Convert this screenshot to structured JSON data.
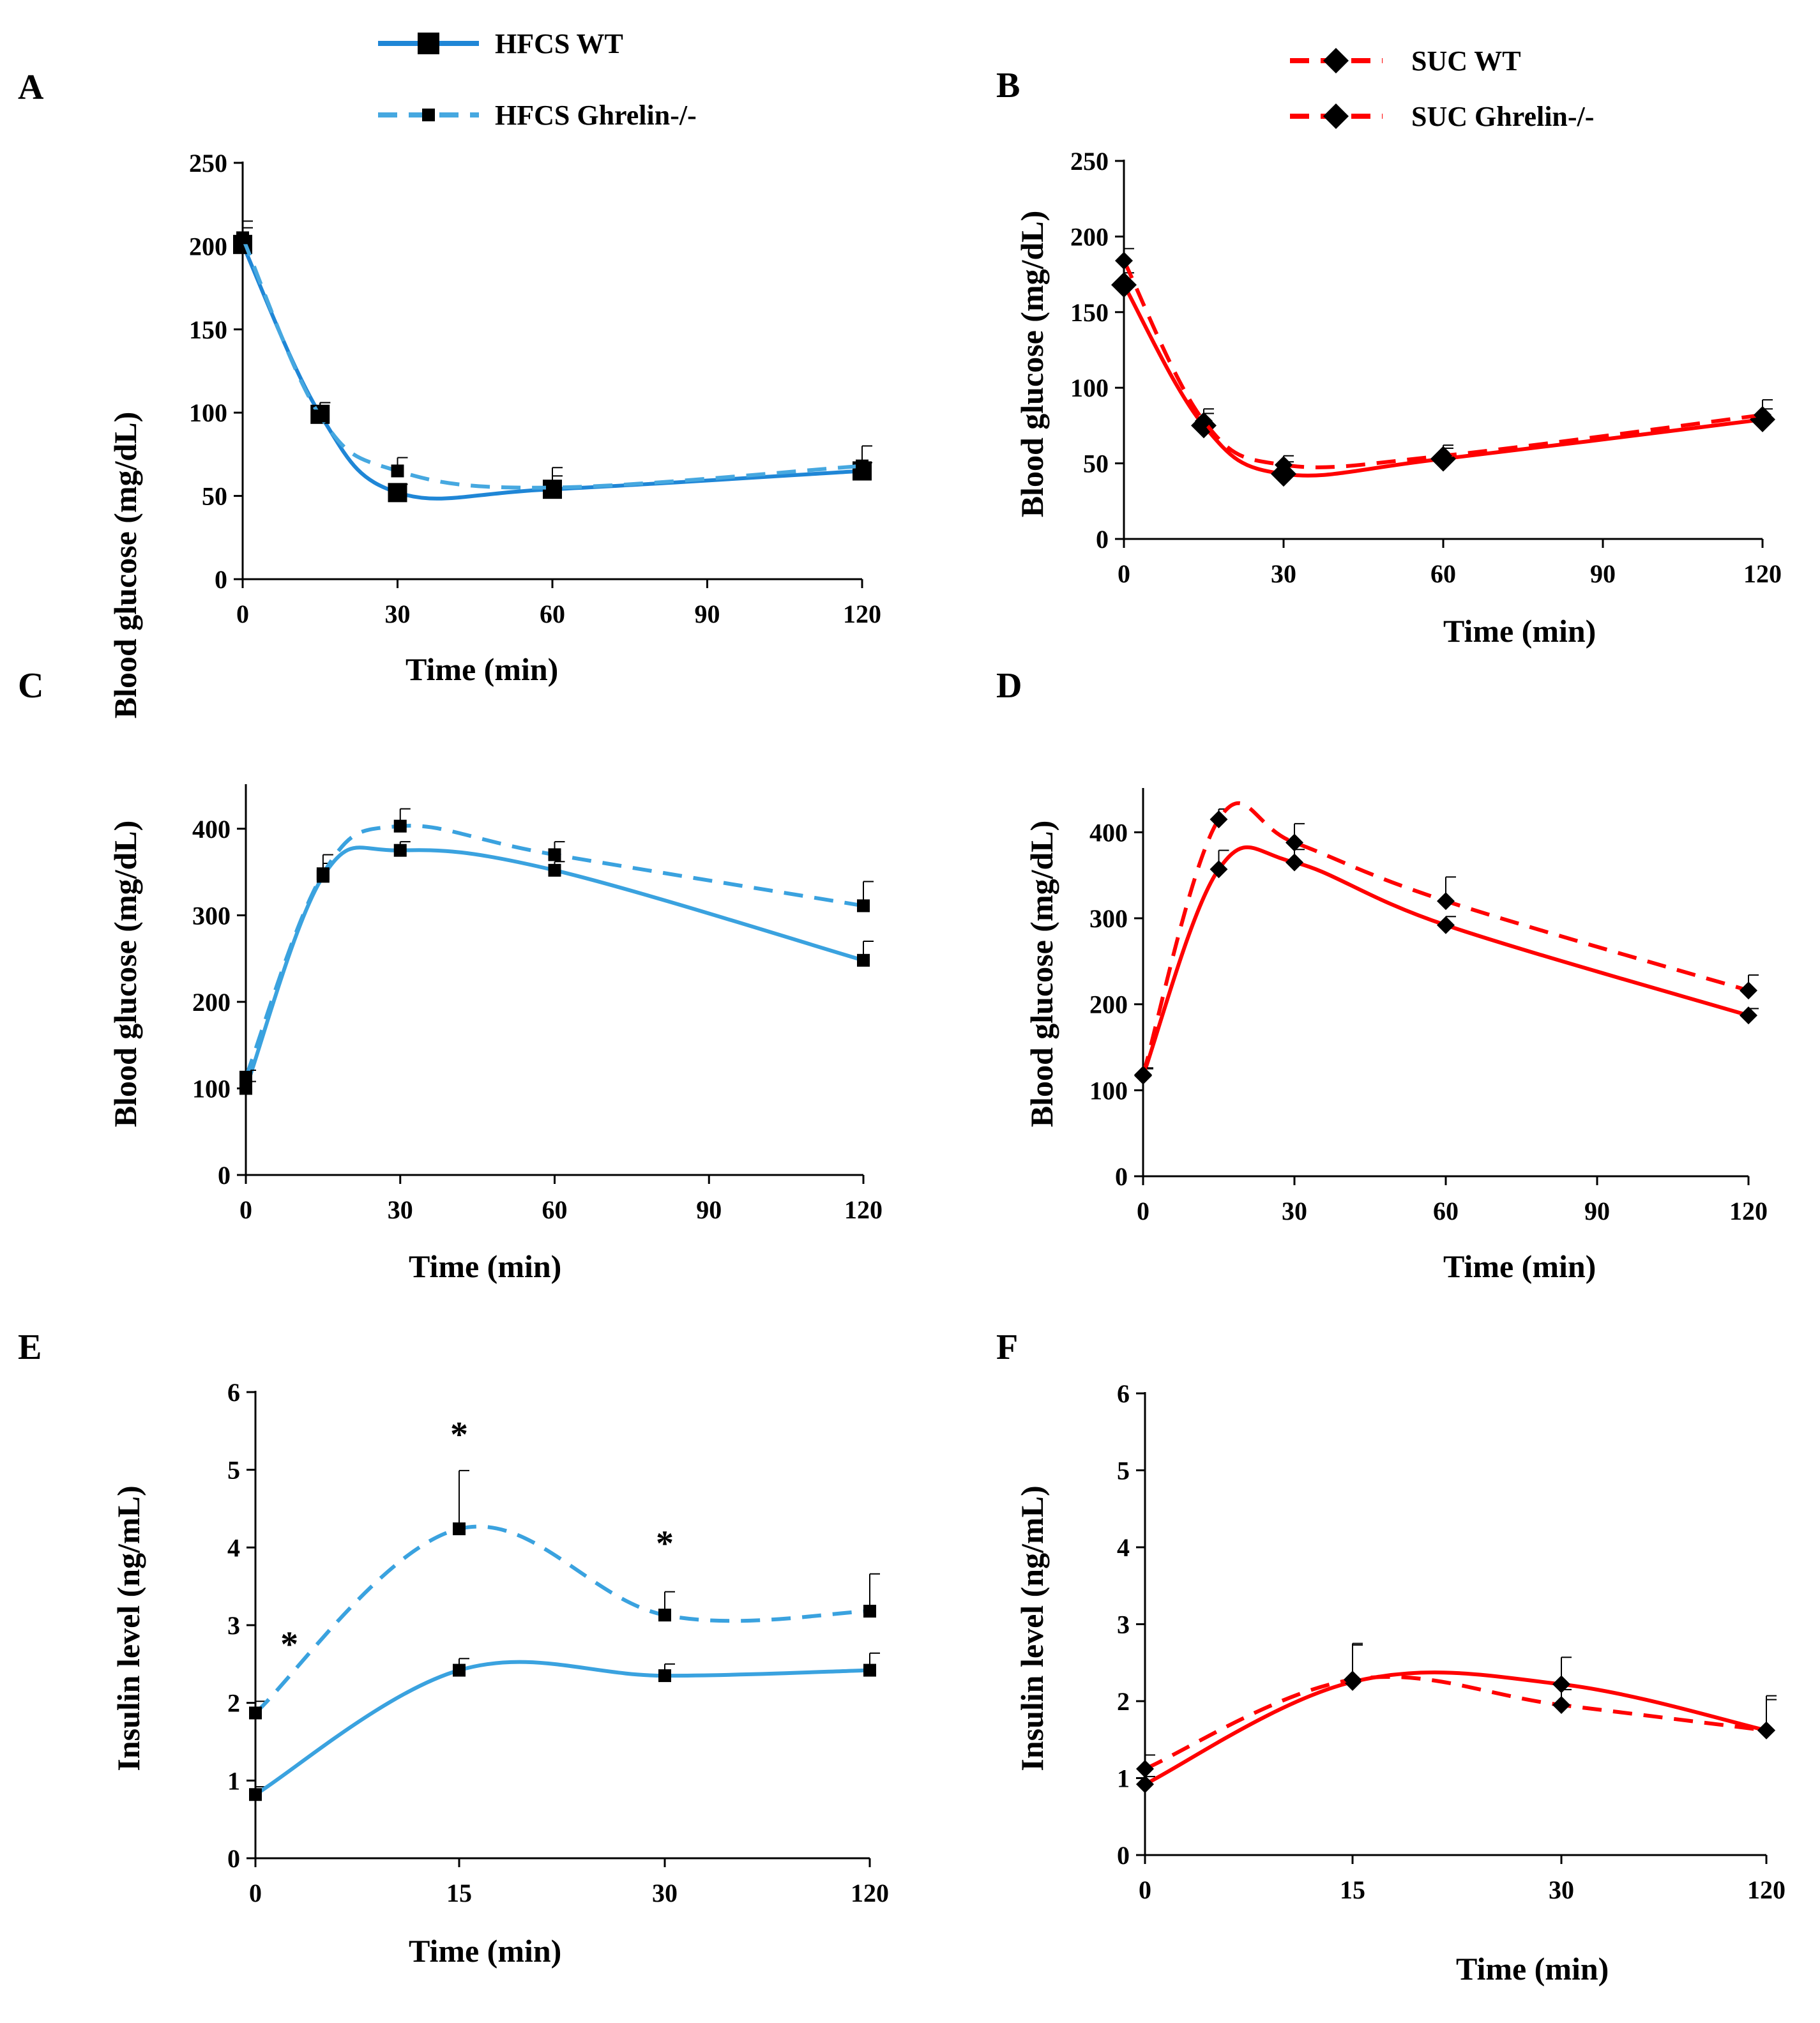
{
  "colors": {
    "hfcs_wt": "#1f86d6",
    "hfcs_ko": "#46a8e0",
    "hfcs_cd": "#3aa2df",
    "suc": "#ff0000",
    "marker": "#000000"
  },
  "legends": {
    "hfcs": [
      {
        "label": "HFCS WT",
        "style": "solid",
        "marker": "square-large"
      },
      {
        "label": "HFCS Ghrelin-/-",
        "style": "dashed",
        "marker": "square-small"
      }
    ],
    "suc": [
      {
        "label": "SUC WT",
        "style": "dashed",
        "marker": "diamond"
      },
      {
        "label": "SUC Ghrelin-/-",
        "style": "dashed",
        "marker": "diamond"
      }
    ]
  },
  "chart_data": [
    {
      "id": "A",
      "letter": "A",
      "type": "line",
      "xlabel": "Time (min)",
      "ylabel": "Blood glucose (mg/dL)",
      "xticks": [
        0,
        30,
        60,
        90,
        120
      ],
      "xtick_labels": [
        "0",
        "30",
        "60",
        "90",
        "120"
      ],
      "yticks": [
        0,
        50,
        100,
        150,
        200,
        250
      ],
      "ylim": [
        0,
        250
      ],
      "series": [
        {
          "name": "HFCS WT",
          "style": "solid",
          "color_key": "hfcs_wt",
          "marker": "square-large",
          "x": [
            0,
            15,
            30,
            60,
            120
          ],
          "values": [
            201,
            99,
            52,
            54,
            65
          ],
          "errors": [
            10,
            7,
            5,
            8,
            5
          ]
        },
        {
          "name": "HFCS Ghrelin-/-",
          "style": "dashed",
          "color_key": "hfcs_ko",
          "marker": "square-small",
          "x": [
            0,
            15,
            30,
            60,
            120
          ],
          "values": [
            205,
            98,
            65,
            55,
            68
          ],
          "errors": [
            10,
            8,
            8,
            12,
            12
          ]
        }
      ],
      "annotations": []
    },
    {
      "id": "B",
      "letter": "B",
      "type": "line",
      "xlabel": "Time (min)",
      "ylabel": "Blood glucose (mg/dL)",
      "xticks": [
        0,
        30,
        60,
        90,
        120
      ],
      "xtick_labels": [
        "0",
        "30",
        "60",
        "90",
        "120"
      ],
      "yticks": [
        0,
        50,
        100,
        150,
        200,
        250
      ],
      "ylim": [
        0,
        250
      ],
      "series": [
        {
          "name": "SUC WT",
          "style": "solid",
          "color_key": "suc",
          "marker": "diamond-large",
          "x": [
            0,
            15,
            30,
            60,
            120
          ],
          "values": [
            168,
            75,
            43,
            53,
            79
          ],
          "errors": [
            8,
            8,
            8,
            7,
            7
          ]
        },
        {
          "name": "SUC Ghrelin-/-",
          "style": "dashed",
          "color_key": "suc",
          "marker": "diamond",
          "x": [
            0,
            15,
            30,
            60,
            120
          ],
          "values": [
            184,
            78,
            49,
            55,
            82
          ],
          "errors": [
            8,
            8,
            6,
            7,
            10
          ]
        }
      ],
      "annotations": []
    },
    {
      "id": "C",
      "letter": "C",
      "type": "line",
      "xlabel": "Time (min)",
      "ylabel": "Blood glucose (mg/dL)",
      "xticks": [
        0,
        30,
        60,
        90,
        120
      ],
      "xtick_labels": [
        "0",
        "30",
        "60",
        "90",
        "120"
      ],
      "yticks": [
        0,
        100,
        200,
        300,
        400
      ],
      "ylim": [
        0,
        450
      ],
      "series": [
        {
          "name": "HFCS WT",
          "style": "solid",
          "color_key": "hfcs_cd",
          "marker": "square-small",
          "x": [
            0,
            15,
            30,
            60,
            120
          ],
          "values": [
            100,
            345,
            375,
            352,
            248
          ],
          "errors": [
            8,
            15,
            10,
            10,
            22
          ]
        },
        {
          "name": "HFCS Ghrelin-/-",
          "style": "dashed",
          "color_key": "hfcs_cd",
          "marker": "square-small",
          "x": [
            0,
            15,
            30,
            60,
            120
          ],
          "values": [
            113,
            348,
            403,
            370,
            311
          ],
          "errors": [
            8,
            22,
            20,
            15,
            28
          ]
        }
      ],
      "annotations": []
    },
    {
      "id": "D",
      "letter": "D",
      "type": "line",
      "xlabel": "Time (min)",
      "ylabel": "Blood glucose (mg/dL)",
      "xticks": [
        0,
        30,
        60,
        90,
        120
      ],
      "xtick_labels": [
        "0",
        "30",
        "60",
        "90",
        "120"
      ],
      "yticks": [
        0,
        100,
        200,
        300,
        400
      ],
      "ylim": [
        0,
        450
      ],
      "series": [
        {
          "name": "SUC WT",
          "style": "solid",
          "color_key": "suc",
          "marker": "diamond",
          "x": [
            0,
            15,
            30,
            60,
            120
          ],
          "values": [
            117,
            357,
            365,
            292,
            187
          ],
          "errors": [
            8,
            22,
            15,
            10,
            8
          ]
        },
        {
          "name": "SUC Ghrelin-/-",
          "style": "dashed",
          "color_key": "suc",
          "marker": "diamond",
          "x": [
            0,
            15,
            30,
            60,
            120
          ],
          "values": [
            118,
            415,
            388,
            320,
            216
          ],
          "errors": [
            8,
            12,
            22,
            28,
            18
          ]
        }
      ],
      "annotations": []
    },
    {
      "id": "E",
      "letter": "E",
      "type": "line",
      "xlabel": "Time (min)",
      "ylabel": "Insulin  level (ng/mL)",
      "xticks": [
        0,
        15,
        30,
        120
      ],
      "xtick_labels": [
        "0",
        "15",
        "30",
        "120"
      ],
      "x_categorical": true,
      "yticks": [
        0,
        1,
        2,
        3,
        4,
        5,
        6
      ],
      "ylim": [
        0,
        6
      ],
      "series": [
        {
          "name": "HFCS WT",
          "style": "solid",
          "color_key": "hfcs_cd",
          "marker": "square-small",
          "x": [
            0,
            15,
            30,
            120
          ],
          "values": [
            0.82,
            2.42,
            2.35,
            2.42
          ],
          "errors": [
            0.1,
            0.15,
            0.15,
            0.22
          ]
        },
        {
          "name": "HFCS Ghrelin-/-",
          "style": "dashed",
          "color_key": "hfcs_cd",
          "marker": "square-small",
          "x": [
            0,
            15,
            30,
            120
          ],
          "values": [
            1.87,
            4.24,
            3.13,
            3.18
          ],
          "errors": [
            0.15,
            0.75,
            0.3,
            0.48
          ]
        }
      ],
      "annotations": [
        {
          "text": "*",
          "x": 2.5,
          "y": 2.6
        },
        {
          "text": "*",
          "x": 15,
          "y": 5.3
        },
        {
          "text": "*",
          "x": 30,
          "y": 3.9
        }
      ]
    },
    {
      "id": "F",
      "letter": "F",
      "type": "line",
      "xlabel": "Time (min)",
      "ylabel": "Insulin  level (ng/mL)",
      "xticks": [
        0,
        15,
        30,
        120
      ],
      "xtick_labels": [
        "0",
        "15",
        "30",
        "120"
      ],
      "x_categorical": true,
      "yticks": [
        0,
        1,
        2,
        3,
        4,
        5,
        6
      ],
      "ylim": [
        0,
        6
      ],
      "series": [
        {
          "name": "SUC WT",
          "style": "solid",
          "color_key": "suc",
          "marker": "diamond",
          "x": [
            0,
            15,
            30,
            120
          ],
          "values": [
            0.92,
            2.25,
            2.22,
            1.62
          ],
          "errors": [
            0.1,
            0.5,
            0.35,
            0.45
          ]
        },
        {
          "name": "SUC Ghrelin-/-",
          "style": "dashed",
          "color_key": "suc",
          "marker": "diamond",
          "x": [
            0,
            15,
            30,
            120
          ],
          "values": [
            1.12,
            2.28,
            1.95,
            1.62
          ],
          "errors": [
            0.18,
            0.45,
            0.2,
            0.4
          ]
        }
      ],
      "annotations": []
    }
  ]
}
